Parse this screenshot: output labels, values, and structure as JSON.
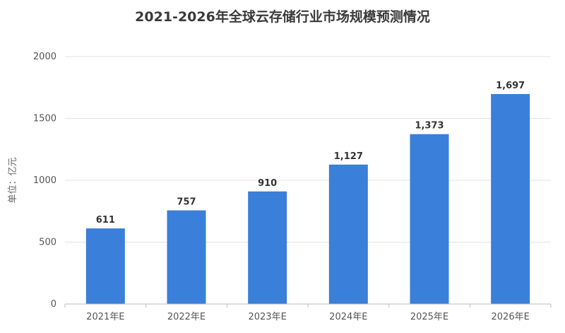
{
  "chart_data": {
    "type": "bar",
    "title": "2021-2026年全球云存储行业市场规模预测情况",
    "ylabel": "单位：亿元",
    "xlabel": "",
    "categories": [
      "2021年E",
      "2022年E",
      "2023年E",
      "2024年E",
      "2025年E",
      "2026年E"
    ],
    "values": [
      611,
      757,
      910,
      1127,
      1373,
      1697
    ],
    "data_labels": [
      "611",
      "757",
      "910",
      "1,127",
      "1,373",
      "1,697"
    ],
    "ylim": [
      0,
      2000
    ],
    "yticks": [
      0,
      500,
      1000,
      1500,
      2000
    ],
    "ytick_labels": [
      "0",
      "500",
      "1000",
      "1500",
      "2000"
    ],
    "grid": true,
    "legend": "none",
    "colors": {
      "bar": "#3a7fd9",
      "grid": "#e3e3e3",
      "axis": "#bdbdbd"
    }
  }
}
